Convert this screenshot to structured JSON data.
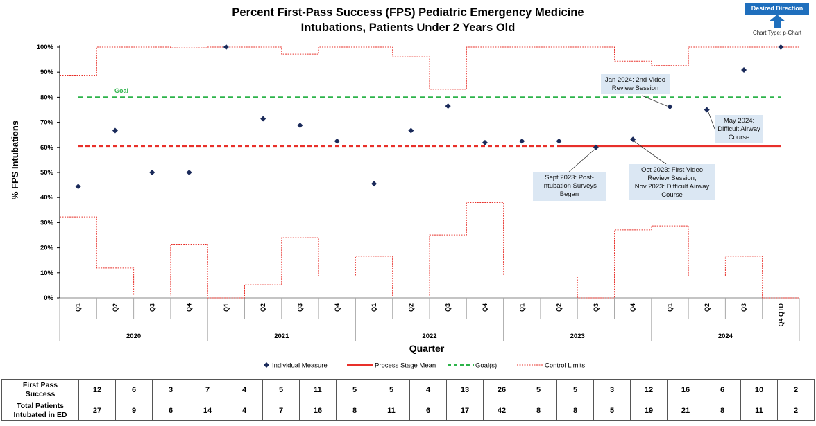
{
  "title_lines": [
    "Percent First-Pass Success (FPS) Pediatric Emergency Medicine",
    "Intubations, Patients Under 2 Years Old"
  ],
  "desired_direction": "Desired Direction",
  "desired_direction_icon": "up-arrow-icon",
  "chart_type_label": "Chart Type: p-Chart",
  "colors": {
    "measure": "#1a2a5a",
    "mean": "#e8302a",
    "goal": "#2db34a",
    "limits": "#e8302a",
    "direction": "#1f6fbd",
    "note_bg": "#dbe7f3"
  },
  "chart_data": {
    "type": "scatter",
    "title": "Percent First-Pass Success (FPS) Pediatric Emergency Medicine Intubations, Patients Under 2 Years Old",
    "xlabel": "Quarter",
    "ylabel": "% FPS Intubations",
    "ylim": [
      0,
      100
    ],
    "yticks": [
      "0%",
      "10%",
      "20%",
      "30%",
      "40%",
      "50%",
      "60%",
      "70%",
      "80%",
      "90%",
      "100%"
    ],
    "categories": [
      "Q1",
      "Q2",
      "Q3",
      "Q4",
      "Q1",
      "Q2",
      "Q3",
      "Q4",
      "Q1",
      "Q2",
      "Q3",
      "Q4",
      "Q1",
      "Q2",
      "Q3",
      "Q4",
      "Q1",
      "Q2",
      "Q3",
      "Q4 QTD"
    ],
    "years": [
      "2020",
      "2021",
      "2022",
      "2023",
      "2024"
    ],
    "series": [
      {
        "name": "Individual Measure",
        "values": [
          44.4,
          66.7,
          50,
          50,
          100,
          71.4,
          68.8,
          62.5,
          45.5,
          66.7,
          76.5,
          61.9,
          62.5,
          62.5,
          60,
          63.2,
          76.2,
          75,
          90.9,
          100
        ]
      },
      {
        "name": "Process Stage Mean",
        "values": [
          60.5
        ]
      },
      {
        "name": "Goal(s)",
        "values": [
          80
        ]
      },
      {
        "name": "Control Limits",
        "upper": [
          88.8,
          100,
          100,
          99.7,
          100,
          100,
          97.2,
          100,
          100,
          96.1,
          83.2,
          100,
          100,
          100,
          100,
          94.4,
          92.6,
          100,
          100,
          100
        ],
        "lower": [
          32.3,
          11.9,
          0.7,
          21.4,
          0,
          5.2,
          24,
          8.7,
          16.6,
          0.7,
          25.1,
          38,
          8.7,
          8.7,
          0,
          27.1,
          28.7,
          8.7,
          16.6,
          0
        ]
      }
    ],
    "goal_label": "Goal",
    "legend": [
      "Individual Measure",
      "Process Stage Mean",
      "Goal(s)",
      "Control Limits"
    ],
    "legend_position": "bottom",
    "grid": false,
    "annotations": [
      "Jan 2024: 2nd Video Review Session",
      "May 2024: Difficult Airway Course",
      "Sept 2023: Post-Intubation Surveys Began",
      "Oct 2023: First Video Review Session; Nov 2023: Difficult Airway Course"
    ]
  },
  "notes": [
    [
      "Jan 2024: 2nd Video",
      "Review Session"
    ],
    [
      "May 2024:",
      "Difficult Airway",
      "Course"
    ],
    [
      "Sept 2023: Post-",
      "Intubation Surveys",
      "Began"
    ],
    [
      "Oct 2023: First Video",
      "Review Session;",
      "Nov 2023: Difficult Airway",
      "Course"
    ]
  ],
  "table": {
    "row1_label": [
      "First Pass",
      "Success"
    ],
    "row2_label": [
      "Total Patients",
      "Intubated in ED"
    ],
    "first_pass": [
      "12",
      "6",
      "3",
      "7",
      "4",
      "5",
      "11",
      "5",
      "5",
      "4",
      "13",
      "26",
      "5",
      "5",
      "3",
      "12",
      "16",
      "6",
      "10",
      "2"
    ],
    "total": [
      "27",
      "9",
      "6",
      "14",
      "4",
      "7",
      "16",
      "8",
      "11",
      "6",
      "17",
      "42",
      "8",
      "8",
      "5",
      "19",
      "21",
      "8",
      "11",
      "2"
    ]
  }
}
